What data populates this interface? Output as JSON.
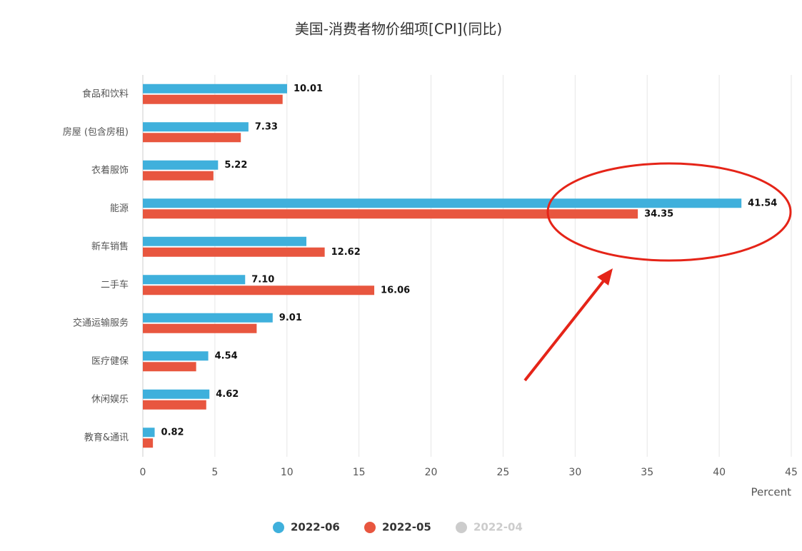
{
  "chart_data": {
    "type": "hbar",
    "title": "美国-消费者物价细项[CPI](同比)",
    "x_label": "Percent",
    "categories": [
      "食品和饮料",
      "房屋 (包含房租)",
      "衣着服饰",
      "能源",
      "新车销售",
      "二手车",
      "交通运输服务",
      "医疗健保",
      "休闲娱乐",
      "教育&通讯"
    ],
    "series": [
      {
        "name": "2022-06",
        "color": "#3fb0dc",
        "values": [
          10.01,
          7.33,
          5.22,
          41.54,
          11.35,
          7.1,
          9.01,
          4.54,
          4.62,
          0.82
        ],
        "value_labels": [
          "10.01",
          "7.33",
          "5.22",
          "41.54",
          null,
          "7.10",
          "9.01",
          "4.54",
          "4.62",
          "0.82"
        ]
      },
      {
        "name": "2022-05",
        "color": "#e8563f",
        "values": [
          9.7,
          6.8,
          4.9,
          34.35,
          12.62,
          16.06,
          7.9,
          3.7,
          4.4,
          0.7
        ],
        "value_labels": [
          null,
          null,
          null,
          "34.35",
          "12.62",
          "16.06",
          null,
          null,
          null,
          null
        ]
      }
    ],
    "legend_inactive": [
      "2022-04"
    ],
    "inactive_color": "#cccccc",
    "xlim": [
      0,
      45
    ],
    "xticks": [
      0,
      5,
      10,
      15,
      20,
      25,
      30,
      35,
      40,
      45
    ],
    "grid": true,
    "legend": "bottom"
  }
}
